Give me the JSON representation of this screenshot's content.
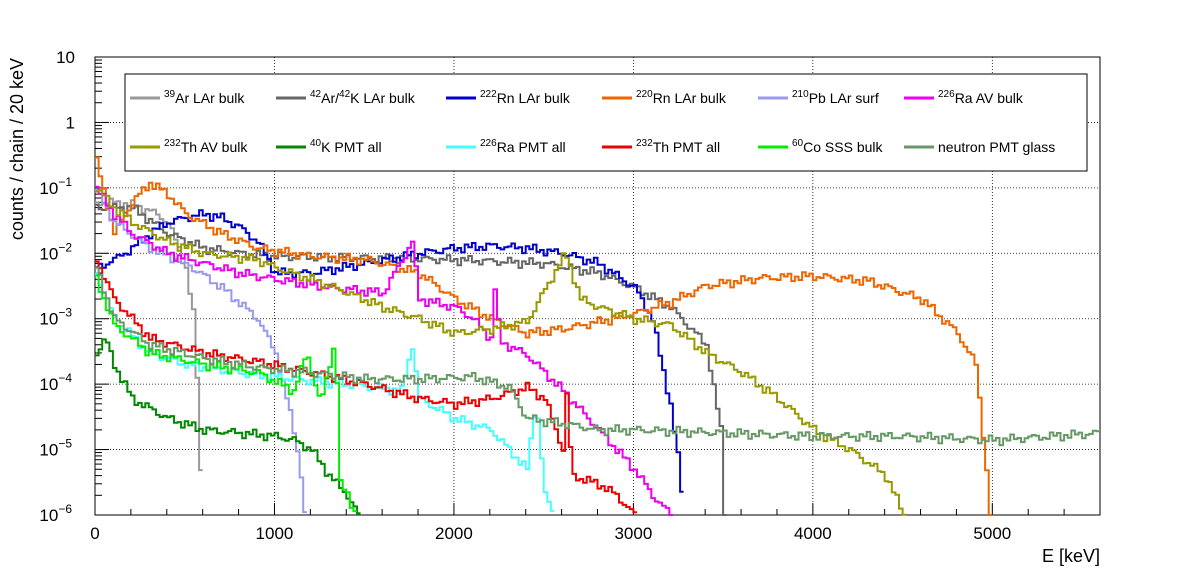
{
  "chart_data": {
    "type": "line",
    "xlabel": "E [keV]",
    "ylabel": "counts / chain / 20 keV",
    "xlim": [
      0,
      5600
    ],
    "ylim": [
      1e-06,
      10
    ],
    "yscale": "log",
    "grid": true,
    "legend_placement": "top",
    "xticks": [
      0,
      1000,
      2000,
      3000,
      4000,
      5000
    ],
    "xtick_labels": [
      "0",
      "1000",
      "2000",
      "3000",
      "4000",
      "5000"
    ],
    "ytick_labels": [
      {
        "value": 1e-06,
        "base": "10",
        "exp": "−6"
      },
      {
        "value": 1e-05,
        "base": "10",
        "exp": "−5"
      },
      {
        "value": 0.0001,
        "base": "10",
        "exp": "−4"
      },
      {
        "value": 0.001,
        "base": "10",
        "exp": "−3"
      },
      {
        "value": 0.01,
        "base": "10",
        "exp": "−2"
      },
      {
        "value": 0.1,
        "base": "10",
        "exp": "−1"
      },
      {
        "value": 1,
        "base": "1",
        "exp": ""
      },
      {
        "value": 10,
        "base": "10",
        "exp": ""
      }
    ],
    "series": [
      {
        "name": "39Ar LAr bulk",
        "legend": [
          {
            "t": "39",
            "sup": true
          },
          {
            "t": "Ar LAr bulk"
          }
        ],
        "color": "#999999",
        "points": [
          [
            0,
            0.06
          ],
          [
            100,
            0.06
          ],
          [
            200,
            0.055
          ],
          [
            300,
            0.045
          ],
          [
            400,
            0.03
          ],
          [
            500,
            0.006
          ],
          [
            550,
            0.0008
          ],
          [
            570,
            2e-05
          ],
          [
            590,
            1e-06
          ]
        ]
      },
      {
        "name": "42Ar/42K LAr bulk",
        "legend": [
          {
            "t": "42",
            "sup": true
          },
          {
            "t": "Ar/"
          },
          {
            "t": "42",
            "sup": true
          },
          {
            "t": "K LAr bulk"
          }
        ],
        "color": "#666666",
        "points": [
          [
            0,
            0.05
          ],
          [
            200,
            0.05
          ],
          [
            400,
            0.02
          ],
          [
            600,
            0.012
          ],
          [
            800,
            0.01
          ],
          [
            1000,
            0.009
          ],
          [
            1500,
            0.0085
          ],
          [
            2000,
            0.008
          ],
          [
            2500,
            0.007
          ],
          [
            2800,
            0.005
          ],
          [
            3000,
            0.003
          ],
          [
            3200,
            0.0015
          ],
          [
            3400,
            0.0004
          ],
          [
            3480,
            2e-05
          ],
          [
            3500,
            1e-06
          ]
        ]
      },
      {
        "name": "222Rn LAr bulk",
        "legend": [
          {
            "t": "222",
            "sup": true
          },
          {
            "t": "Rn LAr bulk"
          }
        ],
        "color": "#0000cc",
        "points": [
          [
            0,
            0.006
          ],
          [
            100,
            0.008
          ],
          [
            200,
            0.012
          ],
          [
            300,
            0.02
          ],
          [
            400,
            0.03
          ],
          [
            500,
            0.035
          ],
          [
            600,
            0.04
          ],
          [
            700,
            0.035
          ],
          [
            800,
            0.025
          ],
          [
            900,
            0.015
          ],
          [
            1000,
            0.005
          ],
          [
            1200,
            0.005
          ],
          [
            1500,
            0.007
          ],
          [
            1800,
            0.01
          ],
          [
            2000,
            0.012
          ],
          [
            2200,
            0.013
          ],
          [
            2400,
            0.012
          ],
          [
            2600,
            0.01
          ],
          [
            2800,
            0.007
          ],
          [
            3000,
            0.003
          ],
          [
            3100,
            0.001
          ],
          [
            3150,
            0.0002
          ],
          [
            3200,
            5e-05
          ],
          [
            3250,
            5e-06
          ],
          [
            3270,
            1e-06
          ]
        ]
      },
      {
        "name": "220Rn LAr bulk",
        "legend": [
          {
            "t": "220",
            "sup": true
          },
          {
            "t": "Rn LAr bulk"
          }
        ],
        "color": "#ee6600",
        "points": [
          [
            0,
            0.25
          ],
          [
            100,
            0.02
          ],
          [
            200,
            0.06
          ],
          [
            300,
            0.12
          ],
          [
            400,
            0.08
          ],
          [
            500,
            0.04
          ],
          [
            700,
            0.02
          ],
          [
            900,
            0.012
          ],
          [
            1200,
            0.009
          ],
          [
            1500,
            0.008
          ],
          [
            1800,
            0.005
          ],
          [
            2000,
            0.002
          ],
          [
            2200,
            0.001
          ],
          [
            2400,
            0.0006
          ],
          [
            2600,
            0.0007
          ],
          [
            2800,
            0.0009
          ],
          [
            3000,
            0.0012
          ],
          [
            3200,
            0.0018
          ],
          [
            3400,
            0.0032
          ],
          [
            3700,
            0.0042
          ],
          [
            4000,
            0.0045
          ],
          [
            4300,
            0.0038
          ],
          [
            4600,
            0.002
          ],
          [
            4800,
            0.0006
          ],
          [
            4900,
            0.0002
          ],
          [
            4950,
            1e-05
          ],
          [
            4980,
            1e-06
          ]
        ]
      },
      {
        "name": "210Pb LAr surf",
        "legend": [
          {
            "t": "210",
            "sup": true
          },
          {
            "t": "Pb LAr surf"
          }
        ],
        "color": "#9999ee",
        "points": [
          [
            0,
            0.1
          ],
          [
            100,
            0.03
          ],
          [
            300,
            0.012
          ],
          [
            500,
            0.007
          ],
          [
            700,
            0.003
          ],
          [
            900,
            0.001
          ],
          [
            1000,
            0.0003
          ],
          [
            1050,
            8e-05
          ],
          [
            1100,
            2e-05
          ],
          [
            1150,
            3e-06
          ],
          [
            1160,
            1e-06
          ]
        ]
      },
      {
        "name": "226Ra AV bulk",
        "legend": [
          {
            "t": "226",
            "sup": true
          },
          {
            "t": "Ra AV bulk"
          }
        ],
        "color": "#ee00ee",
        "points": [
          [
            0,
            0.1
          ],
          [
            100,
            0.04
          ],
          [
            200,
            0.02
          ],
          [
            400,
            0.01
          ],
          [
            600,
            0.007
          ],
          [
            800,
            0.005
          ],
          [
            1000,
            0.004
          ],
          [
            1300,
            0.003
          ],
          [
            1600,
            0.0025
          ],
          [
            1760,
            0.015
          ],
          [
            1800,
            0.002
          ],
          [
            2000,
            0.0015
          ],
          [
            2100,
            0.001
          ],
          [
            2200,
            0.0005
          ],
          [
            2204,
            0.008
          ],
          [
            2250,
            0.00045
          ],
          [
            2400,
            0.00028
          ],
          [
            2600,
            8e-05
          ],
          [
            2800,
            2e-05
          ],
          [
            3000,
            5e-06
          ],
          [
            3100,
            2e-06
          ],
          [
            3200,
            1e-06
          ]
        ]
      },
      {
        "name": "232Th AV bulk",
        "legend": [
          {
            "t": "232",
            "sup": true
          },
          {
            "t": "Th AV bulk"
          }
        ],
        "color": "#999900",
        "points": [
          [
            0,
            0.1
          ],
          [
            100,
            0.05
          ],
          [
            200,
            0.03
          ],
          [
            400,
            0.015
          ],
          [
            600,
            0.01
          ],
          [
            900,
            0.008
          ],
          [
            1000,
            0.006
          ],
          [
            1200,
            0.004
          ],
          [
            1400,
            0.0025
          ],
          [
            1600,
            0.0015
          ],
          [
            1800,
            0.001
          ],
          [
            2000,
            0.0006
          ],
          [
            2200,
            0.0007
          ],
          [
            2400,
            0.0009
          ],
          [
            2614,
            0.01
          ],
          [
            2700,
            0.002
          ],
          [
            2800,
            0.0015
          ],
          [
            3000,
            0.001
          ],
          [
            3200,
            0.0008
          ],
          [
            3400,
            0.0003
          ],
          [
            3600,
            0.00015
          ],
          [
            3800,
            6e-05
          ],
          [
            4000,
            2e-05
          ],
          [
            4200,
            1e-05
          ],
          [
            4400,
            4e-06
          ],
          [
            4500,
            1e-06
          ]
        ]
      },
      {
        "name": "40K PMT all",
        "legend": [
          {
            "t": "40",
            "sup": true
          },
          {
            "t": "K PMT all"
          }
        ],
        "color": "#008800",
        "points": [
          [
            0,
            0.0003
          ],
          [
            50,
            0.0005
          ],
          [
            100,
            0.0002
          ],
          [
            200,
            6e-05
          ],
          [
            400,
            3e-05
          ],
          [
            600,
            2e-05
          ],
          [
            800,
            1.8e-05
          ],
          [
            1000,
            1.6e-05
          ],
          [
            1100,
            1.4e-05
          ],
          [
            1200,
            1e-05
          ],
          [
            1300,
            4e-06
          ],
          [
            1400,
            2e-06
          ],
          [
            1460,
            1e-06
          ]
        ]
      },
      {
        "name": "226Ra PMT all",
        "legend": [
          {
            "t": "226",
            "sup": true
          },
          {
            "t": "Ra PMT all"
          }
        ],
        "color": "#44ffff",
        "points": [
          [
            0,
            0.005
          ],
          [
            100,
            0.001
          ],
          [
            300,
            0.0003
          ],
          [
            500,
            0.0002
          ],
          [
            800,
            0.00015
          ],
          [
            1100,
            0.00012
          ],
          [
            1400,
            0.0001
          ],
          [
            1700,
            8e-05
          ],
          [
            1760,
            0.0004
          ],
          [
            1800,
            6e-05
          ],
          [
            2000,
            3e-05
          ],
          [
            2200,
            2e-05
          ],
          [
            2300,
            1e-05
          ],
          [
            2400,
            5e-06
          ],
          [
            2450,
            6e-05
          ],
          [
            2500,
            2e-06
          ],
          [
            2550,
            1e-06
          ]
        ]
      },
      {
        "name": "232Th PMT all",
        "legend": [
          {
            "t": "232",
            "sup": true
          },
          {
            "t": "Th PMT all"
          }
        ],
        "color": "#ee0000",
        "points": [
          [
            0,
            0.008
          ],
          [
            100,
            0.002
          ],
          [
            300,
            0.0005
          ],
          [
            600,
            0.0003
          ],
          [
            900,
            0.00022
          ],
          [
            1200,
            0.00015
          ],
          [
            1500,
            0.0001
          ],
          [
            1800,
            6e-05
          ],
          [
            2000,
            5e-05
          ],
          [
            2200,
            6e-05
          ],
          [
            2400,
            9e-05
          ],
          [
            2500,
            6e-05
          ],
          [
            2600,
            1e-05
          ],
          [
            2614,
            0.00012
          ],
          [
            2650,
            4e-06
          ],
          [
            2800,
            3e-06
          ],
          [
            2900,
            2e-06
          ],
          [
            3000,
            1e-06
          ]
        ]
      },
      {
        "name": "60Co SSS bulk",
        "legend": [
          {
            "t": "60",
            "sup": true
          },
          {
            "t": "Co SSS bulk"
          }
        ],
        "color": "#00ee00",
        "points": [
          [
            0,
            0.004
          ],
          [
            100,
            0.0008
          ],
          [
            300,
            0.0003
          ],
          [
            600,
            0.0002
          ],
          [
            900,
            0.00015
          ],
          [
            1100,
            8e-05
          ],
          [
            1173,
            0.0003
          ],
          [
            1250,
            5e-05
          ],
          [
            1332,
            0.0005
          ],
          [
            1360,
            3e-06
          ],
          [
            1400,
            2e-06
          ],
          [
            1450,
            1e-06
          ]
        ]
      },
      {
        "name": "neutron PMT glass",
        "legend": [
          {
            "t": "neutron PMT glass"
          }
        ],
        "color": "#669966",
        "points": [
          [
            0,
            0.006
          ],
          [
            100,
            0.001
          ],
          [
            300,
            0.0004
          ],
          [
            600,
            0.00025
          ],
          [
            900,
            0.00018
          ],
          [
            1200,
            0.00015
          ],
          [
            1500,
            0.00012
          ],
          [
            1800,
            0.00012
          ],
          [
            2100,
            0.00013
          ],
          [
            2300,
            9e-05
          ],
          [
            2400,
            3e-05
          ],
          [
            2600,
            2.5e-05
          ],
          [
            2800,
            2e-05
          ],
          [
            3000,
            2e-05
          ],
          [
            3500,
            1.8e-05
          ],
          [
            4000,
            1.6e-05
          ],
          [
            4500,
            1.6e-05
          ],
          [
            5000,
            1.4e-05
          ],
          [
            5600,
            1.8e-05
          ]
        ]
      }
    ]
  }
}
